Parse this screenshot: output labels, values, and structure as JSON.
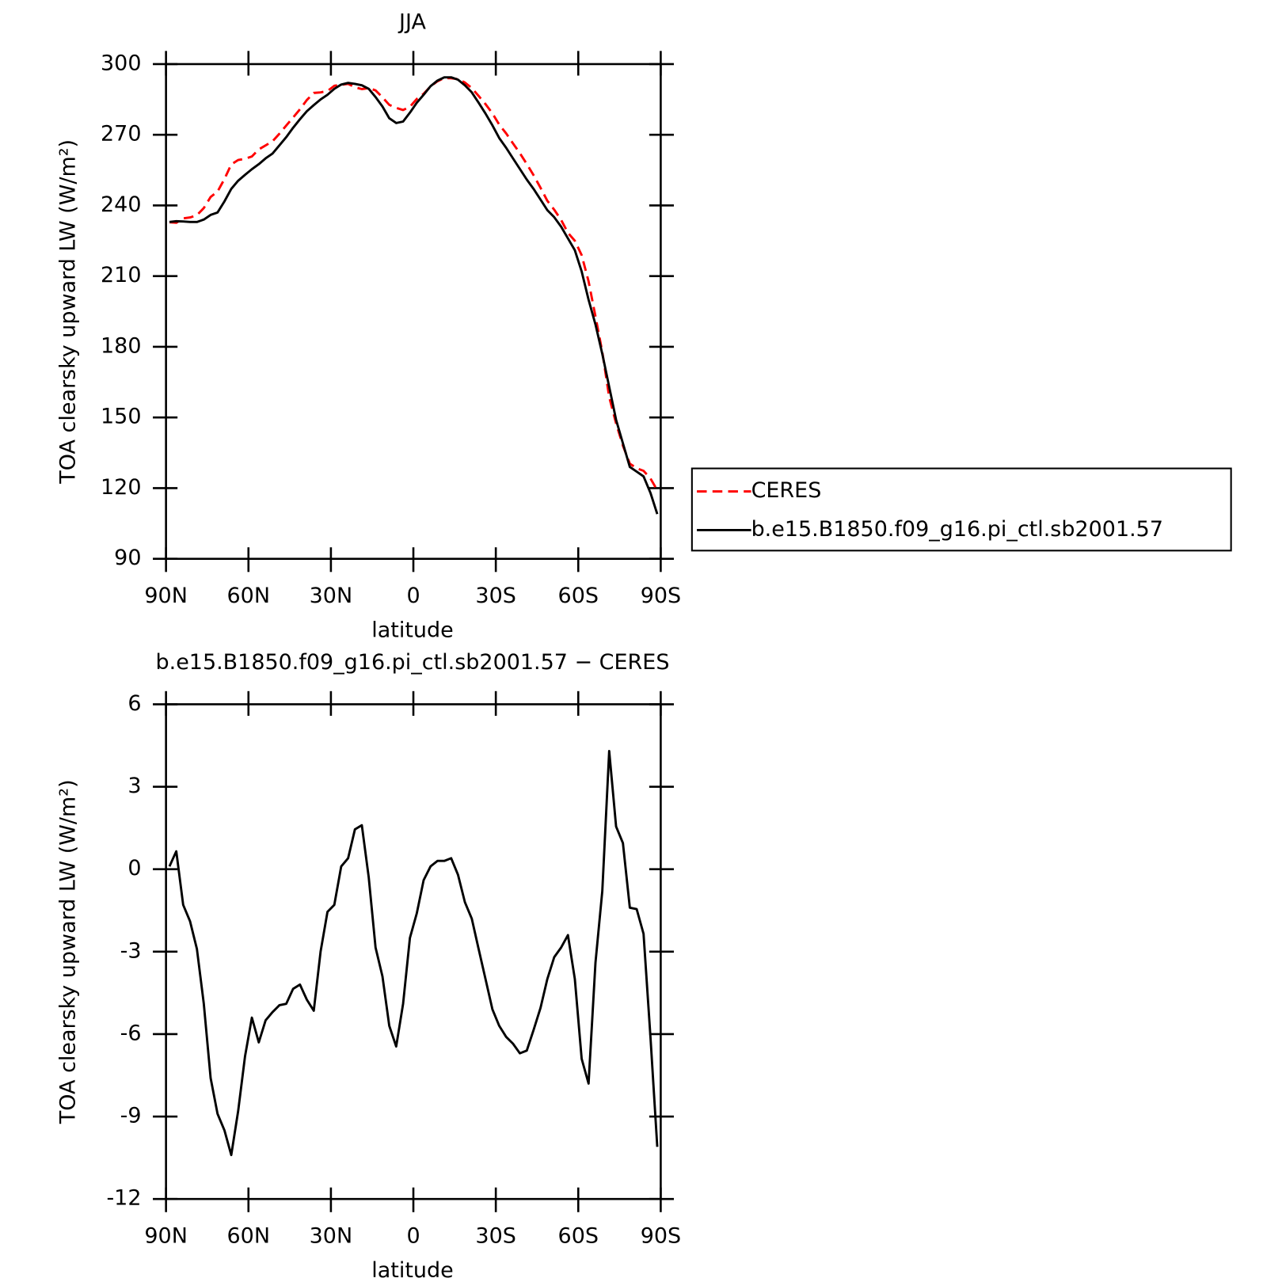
{
  "chart_data": [
    {
      "type": "line",
      "title": "JJA",
      "xlabel": "latitude",
      "ylabel": "TOA clearsky upward LW (W/m²)",
      "xlim": [
        90,
        -90
      ],
      "xticks": [
        {
          "value": 90,
          "label": "90N"
        },
        {
          "value": 60,
          "label": "60N"
        },
        {
          "value": 30,
          "label": "30N"
        },
        0,
        {
          "value": -30,
          "label": "30S"
        },
        {
          "value": -60,
          "label": "60S"
        },
        {
          "value": -90,
          "label": "90S"
        }
      ],
      "ylim": [
        90,
        300
      ],
      "yticks": [
        90,
        120,
        150,
        180,
        210,
        240,
        270,
        300
      ],
      "legend": "right",
      "x": [
        88.75,
        86.25,
        83.75,
        81.25,
        78.75,
        76.25,
        73.75,
        71.25,
        68.75,
        66.25,
        63.75,
        61.25,
        58.75,
        56.25,
        53.75,
        51.25,
        48.75,
        46.25,
        43.75,
        41.25,
        38.75,
        36.25,
        33.75,
        31.25,
        28.75,
        26.25,
        23.75,
        21.25,
        18.75,
        16.25,
        13.75,
        11.25,
        8.75,
        6.25,
        3.75,
        1.25,
        -1.25,
        -3.75,
        -6.25,
        -8.75,
        -11.25,
        -13.75,
        -16.25,
        -18.75,
        -21.25,
        -23.75,
        -26.25,
        -28.75,
        -31.25,
        -33.75,
        -36.25,
        -38.75,
        -41.25,
        -43.75,
        -46.25,
        -48.75,
        -51.25,
        -53.75,
        -56.25,
        -58.75,
        -61.25,
        -63.75,
        -66.25,
        -68.75,
        -71.25,
        -73.75,
        -76.25,
        -78.75,
        -81.25,
        -83.75,
        -86.25,
        -88.75
      ],
      "series": [
        {
          "name": "CERES",
          "color": "#ff0000",
          "dashed": true,
          "values": [
            232.9,
            232.65,
            234.5,
            234.9,
            235.9,
            238.9,
            243.6,
            245.9,
            251.2,
            257.4,
            259.3,
            259.8,
            260.8,
            263.8,
            265.5,
            267.2,
            270.45,
            273.9,
            277.35,
            280.8,
            284.75,
            287.75,
            288,
            288.55,
            290.8,
            291.2,
            291.6,
            290.15,
            289.4,
            289.8,
            288.85,
            285.9,
            282.7,
            281.45,
            280.5,
            281.9,
            285.2,
            287.4,
            290.5,
            292.7,
            294.1,
            294,
            293.6,
            292.2,
            289.8,
            286.5,
            283,
            279.1,
            274.3,
            270.6,
            266.35,
            262.2,
            257.6,
            252.85,
            247.55,
            242,
            238.2,
            233.85,
            228.4,
            225,
            218.9,
            207.8,
            192.9,
            177.8,
            158.7,
            147.45,
            138.05,
            130.4,
            128.45,
            127.35,
            124.1,
            119.1
          ]
        },
        {
          "name": "b.e15.B1850.f09_g16.pi_ctl.sb2001.57",
          "color": "#000000",
          "dashed": false,
          "values": [
            233,
            233.3,
            233.2,
            233,
            233,
            234,
            236,
            237,
            241.7,
            247,
            250.5,
            253,
            255.4,
            257.5,
            260,
            262,
            265.5,
            269,
            273,
            276.6,
            280,
            282.6,
            285,
            287,
            289.5,
            291.3,
            292,
            291.6,
            291,
            289.5,
            286,
            282,
            277,
            275,
            275.6,
            279.4,
            283.6,
            287,
            290.6,
            293,
            294.4,
            294.4,
            293.4,
            291,
            288,
            283.6,
            279,
            274,
            268.6,
            264.5,
            260,
            255.5,
            251,
            247,
            242.5,
            238,
            235,
            231,
            226,
            221,
            212,
            200,
            189.5,
            177,
            163,
            149,
            139,
            129,
            127,
            125,
            118,
            109
          ]
        }
      ]
    },
    {
      "type": "line",
      "title": "b.e15.B1850.f09_g16.pi_ctl.sb2001.57 − CERES",
      "xlabel": "latitude",
      "ylabel": "TOA clearsky upward LW (W/m²)",
      "xlim": [
        90,
        -90
      ],
      "xticks": [
        {
          "value": 90,
          "label": "90N"
        },
        {
          "value": 60,
          "label": "60N"
        },
        {
          "value": 30,
          "label": "30N"
        },
        0,
        {
          "value": -30,
          "label": "30S"
        },
        {
          "value": -60,
          "label": "60S"
        },
        {
          "value": -90,
          "label": "90S"
        }
      ],
      "ylim": [
        -12,
        6
      ],
      "yticks": [
        -12,
        -9,
        -6,
        -3,
        0,
        3,
        6
      ],
      "color": "#000000",
      "x": [
        88.75,
        86.25,
        83.75,
        81.25,
        78.75,
        76.25,
        73.75,
        71.25,
        68.75,
        66.25,
        63.75,
        61.25,
        58.75,
        56.25,
        53.75,
        51.25,
        48.75,
        46.25,
        43.75,
        41.25,
        38.75,
        36.25,
        33.75,
        31.25,
        28.75,
        26.25,
        23.75,
        21.25,
        18.75,
        16.25,
        13.75,
        11.25,
        8.75,
        6.25,
        3.75,
        1.25,
        -1.25,
        -3.75,
        -6.25,
        -8.75,
        -11.25,
        -13.75,
        -16.25,
        -18.75,
        -21.25,
        -23.75,
        -26.25,
        -28.75,
        -31.25,
        -33.75,
        -36.25,
        -38.75,
        -41.25,
        -43.75,
        -46.25,
        -48.75,
        -51.25,
        -53.75,
        -56.25,
        -58.75,
        -61.25,
        -63.75,
        -66.25,
        -68.75,
        -71.25,
        -73.75,
        -76.25,
        -78.75,
        -81.25,
        -83.75,
        -86.25,
        -88.75
      ],
      "values": [
        0.1,
        0.65,
        -1.3,
        -1.9,
        -2.9,
        -4.9,
        -7.6,
        -8.9,
        -9.5,
        -10.4,
        -8.8,
        -6.8,
        -5.4,
        -6.3,
        -5.5,
        -5.2,
        -4.95,
        -4.9,
        -4.35,
        -4.2,
        -4.75,
        -5.15,
        -3.0,
        -1.55,
        -1.3,
        0.1,
        0.4,
        1.45,
        1.6,
        -0.3,
        -2.85,
        -3.9,
        -5.7,
        -6.45,
        -4.9,
        -2.5,
        -1.6,
        -0.4,
        0.1,
        0.3,
        0.3,
        0.4,
        -0.2,
        -1.2,
        -1.8,
        -2.9,
        -4.0,
        -5.1,
        -5.7,
        -6.1,
        -6.35,
        -6.7,
        -6.6,
        -5.85,
        -5.05,
        -4.0,
        -3.2,
        -2.85,
        -2.4,
        -4.0,
        -6.9,
        -7.8,
        -3.4,
        -0.8,
        4.3,
        1.55,
        0.95,
        -1.4,
        -1.45,
        -2.35,
        -6.1,
        -10.1
      ]
    }
  ]
}
